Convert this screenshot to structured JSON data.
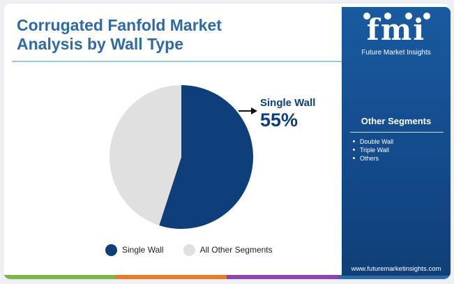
{
  "header": {
    "title_line1": "Corrugated Fanfold Market",
    "title_line2": "Analysis by Wall Type"
  },
  "chart_data": {
    "type": "pie",
    "slices": [
      {
        "label": "Single Wall",
        "value": 55,
        "color": "#0e3f7a"
      },
      {
        "label": "All Other Segments",
        "value": 45,
        "color": "#e0e0e0"
      }
    ],
    "annotation": {
      "label": "Single Wall",
      "value": "55%"
    },
    "legend": [
      "Single Wall",
      "All Other Segments"
    ],
    "legend_position": "bottom"
  },
  "sidebar": {
    "logo": "fmi",
    "logo_sub": "Future Market Insights",
    "heading": "Other Segments",
    "items": [
      "Double Wall",
      "Triple Wall",
      "Others"
    ],
    "url": "www.futuremarketinsights.com"
  },
  "colors": {
    "title": "#2e6aa6",
    "accent_dark": "#0e3f7a",
    "sidebar_bg": "#134a8a",
    "bottom_bar": [
      "#7ab648",
      "#e87a2c",
      "#8e44ad",
      "#2e6aa6"
    ]
  },
  "icons": [
    "arrow-right-icon",
    "fmi-logo-icon"
  ]
}
